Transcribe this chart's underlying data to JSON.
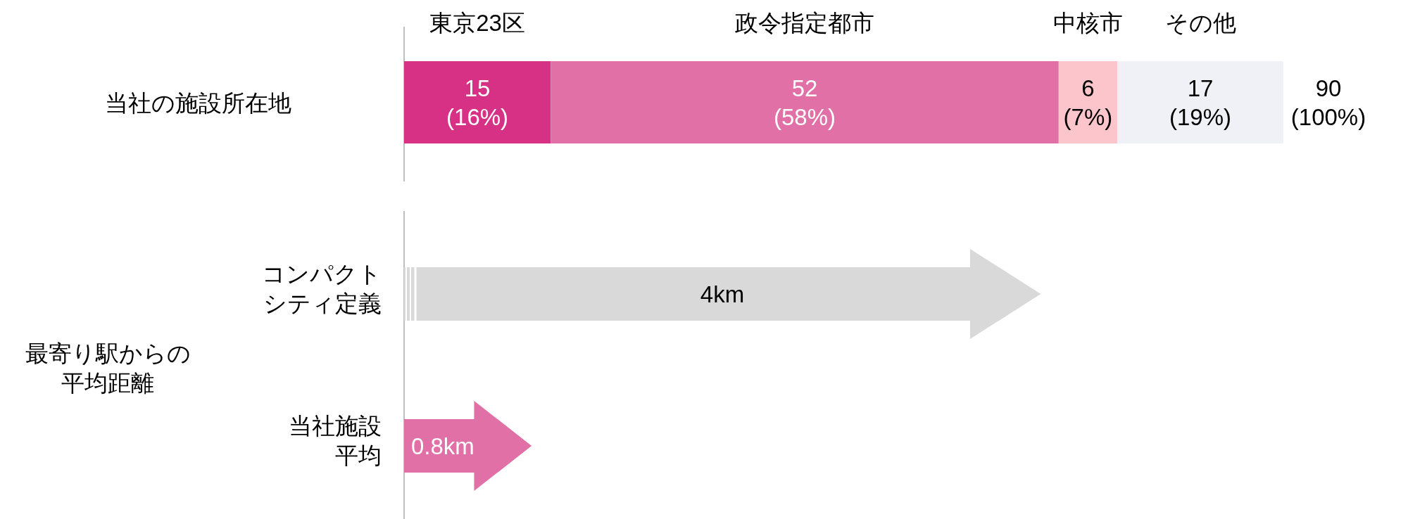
{
  "chart_data": [
    {
      "type": "bar",
      "orientation": "horizontal",
      "stacked": true,
      "categories": [
        "当社の施設所在地"
      ],
      "series": [
        {
          "name": "東京23区",
          "color": "#d63185",
          "values": [
            15
          ],
          "value_labels": [
            "15\n(16%)"
          ]
        },
        {
          "name": "政令指定都市",
          "color": "#e070a5",
          "values": [
            52
          ],
          "value_labels": [
            "52\n(58%)"
          ]
        },
        {
          "name": "中核市",
          "color": "#fcc5cc",
          "values": [
            6
          ],
          "value_labels": [
            "6\n(7%)"
          ]
        },
        {
          "name": "その他",
          "color": "#f0f1f6",
          "values": [
            17
          ],
          "value_labels": [
            "17\n(19%)"
          ]
        }
      ],
      "totals": [
        "90\n(100%)"
      ]
    },
    {
      "type": "bar",
      "orientation": "horizontal",
      "ylabel": "最寄り駅からの平均距離",
      "categories": [
        "コンパクトシティ定義",
        "当社施設平均"
      ],
      "values": [
        4,
        0.8
      ],
      "colors": [
        "#d9d9d9",
        "#e070a5"
      ],
      "value_labels": [
        "4km",
        "0.8km"
      ]
    }
  ]
}
